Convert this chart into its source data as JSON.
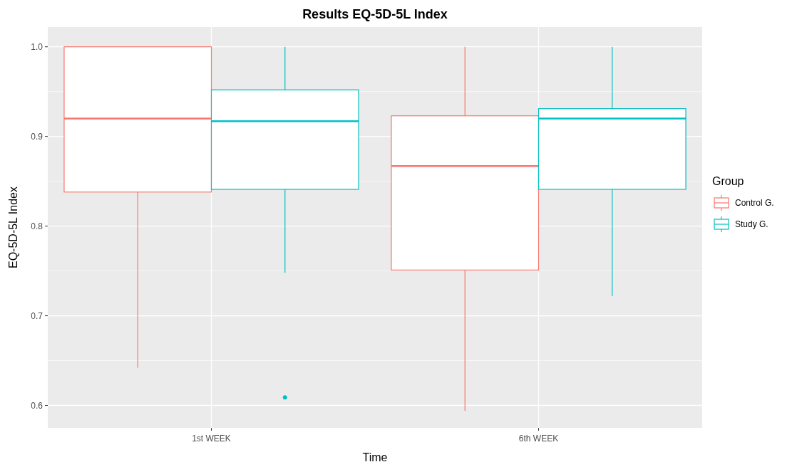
{
  "chart_data": {
    "type": "box",
    "title": "Results EQ-5D-5L Index",
    "xlabel": "Time",
    "ylabel": "EQ-5D-5L Index",
    "legend_title": "Group",
    "categories": [
      "1st WEEK",
      "6th WEEK"
    ],
    "series": [
      {
        "name": "Control G.",
        "color": "#f8766d",
        "boxes": [
          {
            "low": 0.642,
            "q1": 0.838,
            "median": 0.92,
            "q3": 1.0,
            "high": 1.0
          },
          {
            "low": 0.594,
            "q1": 0.751,
            "median": 0.867,
            "q3": 0.923,
            "high": 1.0
          }
        ]
      },
      {
        "name": "Study G.",
        "color": "#00bfc4",
        "boxes": [
          {
            "low": 0.748,
            "q1": 0.841,
            "median": 0.917,
            "q3": 0.952,
            "high": 1.0,
            "outliers": [
              0.609
            ]
          },
          {
            "low": 0.722,
            "q1": 0.841,
            "median": 0.92,
            "q3": 0.931,
            "high": 1.0
          }
        ]
      }
    ],
    "ylim": [
      0.575,
      1.022
    ],
    "yticks": [
      {
        "value": 0.6,
        "label": "0.6"
      },
      {
        "value": 0.7,
        "label": "0.7"
      },
      {
        "value": 0.8,
        "label": "0.8"
      },
      {
        "value": 0.9,
        "label": "0.9"
      },
      {
        "value": 1.0,
        "label": "1.0"
      }
    ],
    "grid": true,
    "legend": "right"
  }
}
